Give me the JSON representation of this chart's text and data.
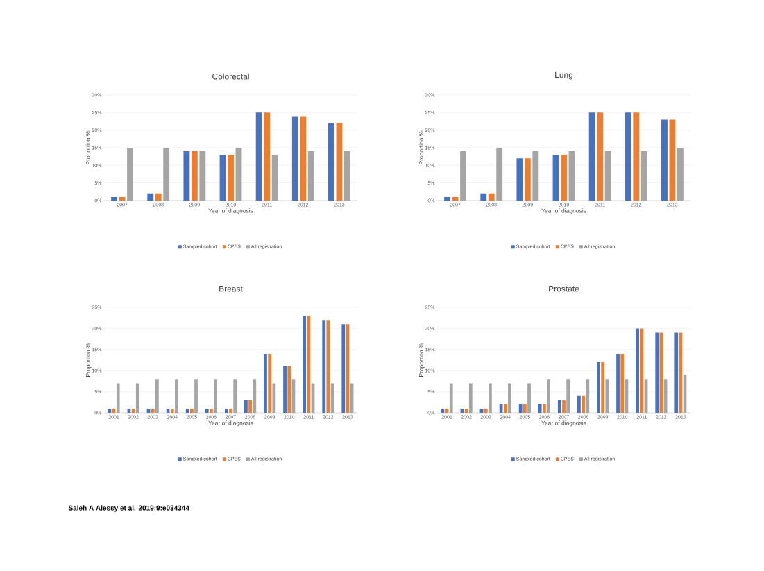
{
  "chart_data": [
    {
      "type": "bar",
      "title": "Colorectal",
      "xlabel": "Year of diagnosis",
      "ylabel": "Proportion %",
      "categories": [
        "2007",
        "2008",
        "2009",
        "2010",
        "2011",
        "2012",
        "2013"
      ],
      "series": [
        {
          "name": "Sampled cohort",
          "color": "#4472c4",
          "values": [
            1,
            2,
            14,
            13,
            25,
            24,
            22
          ]
        },
        {
          "name": "CPES",
          "color": "#ed7d31",
          "values": [
            1,
            2,
            14,
            13,
            25,
            24,
            22
          ]
        },
        {
          "name": "All registration",
          "color": "#a5a5a5",
          "values": [
            15,
            15,
            14,
            15,
            13,
            14,
            14
          ]
        }
      ],
      "ylim": [
        0,
        30
      ],
      "yticks": [
        {
          "value": 0,
          "label": "0%"
        },
        {
          "value": 5,
          "label": "5%"
        },
        {
          "value": 10,
          "label": "10%"
        },
        {
          "value": 15,
          "label": "15%"
        },
        {
          "value": 20,
          "label": "20%"
        },
        {
          "value": 25,
          "label": "25%"
        },
        {
          "value": 30,
          "label": "30%"
        }
      ],
      "grid": "y",
      "legend": "bottom"
    },
    {
      "type": "bar",
      "title": "Lung",
      "xlabel": "Year of diagnosis",
      "ylabel": "Proportion %",
      "categories": [
        "2007",
        "2008",
        "2009",
        "2010",
        "2011",
        "2012",
        "2013"
      ],
      "series": [
        {
          "name": "Sampled cohort",
          "color": "#4472c4",
          "values": [
            1,
            2,
            12,
            13,
            25,
            25,
            23
          ]
        },
        {
          "name": "CPES",
          "color": "#ed7d31",
          "values": [
            1,
            2,
            12,
            13,
            25,
            25,
            23
          ]
        },
        {
          "name": "All registration",
          "color": "#a5a5a5",
          "values": [
            14,
            15,
            14,
            14,
            14,
            14,
            15
          ]
        }
      ],
      "ylim": [
        0,
        30
      ],
      "yticks": [
        {
          "value": 0,
          "label": "0%"
        },
        {
          "value": 5,
          "label": "5%"
        },
        {
          "value": 10,
          "label": "10%"
        },
        {
          "value": 15,
          "label": "15%"
        },
        {
          "value": 20,
          "label": "20%"
        },
        {
          "value": 25,
          "label": "25%"
        },
        {
          "value": 30,
          "label": "30%"
        }
      ],
      "grid": "y",
      "legend": "bottom"
    },
    {
      "type": "bar",
      "title": "Breast",
      "xlabel": "Year of diagnosis",
      "ylabel": "Proportion %",
      "categories": [
        "2001",
        "2002",
        "2003",
        "2004",
        "2005",
        "2006",
        "2007",
        "2008",
        "2009",
        "2010",
        "2011",
        "2012",
        "2013"
      ],
      "series": [
        {
          "name": "Sampled cohort",
          "color": "#4472c4",
          "values": [
            1,
            1,
            1,
            1,
            1,
            1,
            1,
            3,
            14,
            11,
            23,
            22,
            21
          ]
        },
        {
          "name": "CPES",
          "color": "#ed7d31",
          "values": [
            1,
            1,
            1,
            1,
            1,
            1,
            1,
            3,
            14,
            11,
            23,
            22,
            21
          ]
        },
        {
          "name": "All registration",
          "color": "#a5a5a5",
          "values": [
            7,
            7,
            8,
            8,
            8,
            8,
            8,
            8,
            7,
            8,
            7,
            7,
            7
          ]
        }
      ],
      "ylim": [
        0,
        25
      ],
      "yticks": [
        {
          "value": 0,
          "label": "0%"
        },
        {
          "value": 5,
          "label": "5%"
        },
        {
          "value": 10,
          "label": "10%"
        },
        {
          "value": 15,
          "label": "15%"
        },
        {
          "value": 20,
          "label": "20%"
        },
        {
          "value": 25,
          "label": "25%"
        }
      ],
      "grid": "y",
      "legend": "bottom",
      "annotations": [
        "Saleh A Alessy et al. 2019;9:e034344"
      ]
    },
    {
      "type": "bar",
      "title": "Prostate",
      "xlabel": "Year of diagnosis",
      "ylabel": "Proportion %",
      "categories": [
        "2001",
        "2002",
        "2003",
        "2004",
        "2005",
        "2006",
        "2007",
        "2008",
        "2009",
        "2010",
        "2011",
        "2012",
        "2013"
      ],
      "series": [
        {
          "name": "Sampled cohort",
          "color": "#4472c4",
          "values": [
            1,
            1,
            1,
            2,
            2,
            2,
            3,
            4,
            12,
            14,
            20,
            19,
            19
          ]
        },
        {
          "name": "CPES",
          "color": "#ed7d31",
          "values": [
            1,
            1,
            1,
            2,
            2,
            2,
            3,
            4,
            12,
            14,
            20,
            19,
            19
          ]
        },
        {
          "name": "All registration",
          "color": "#a5a5a5",
          "values": [
            7,
            7,
            7,
            7,
            7,
            8,
            8,
            8,
            8,
            8,
            8,
            8,
            9
          ]
        }
      ],
      "ylim": [
        0,
        25
      ],
      "yticks": [
        {
          "value": 0,
          "label": "0%"
        },
        {
          "value": 5,
          "label": "5%"
        },
        {
          "value": 10,
          "label": "10%"
        },
        {
          "value": 15,
          "label": "15%"
        },
        {
          "value": 20,
          "label": "20%"
        },
        {
          "value": 25,
          "label": "25%"
        }
      ],
      "grid": "y",
      "legend": "bottom"
    }
  ]
}
